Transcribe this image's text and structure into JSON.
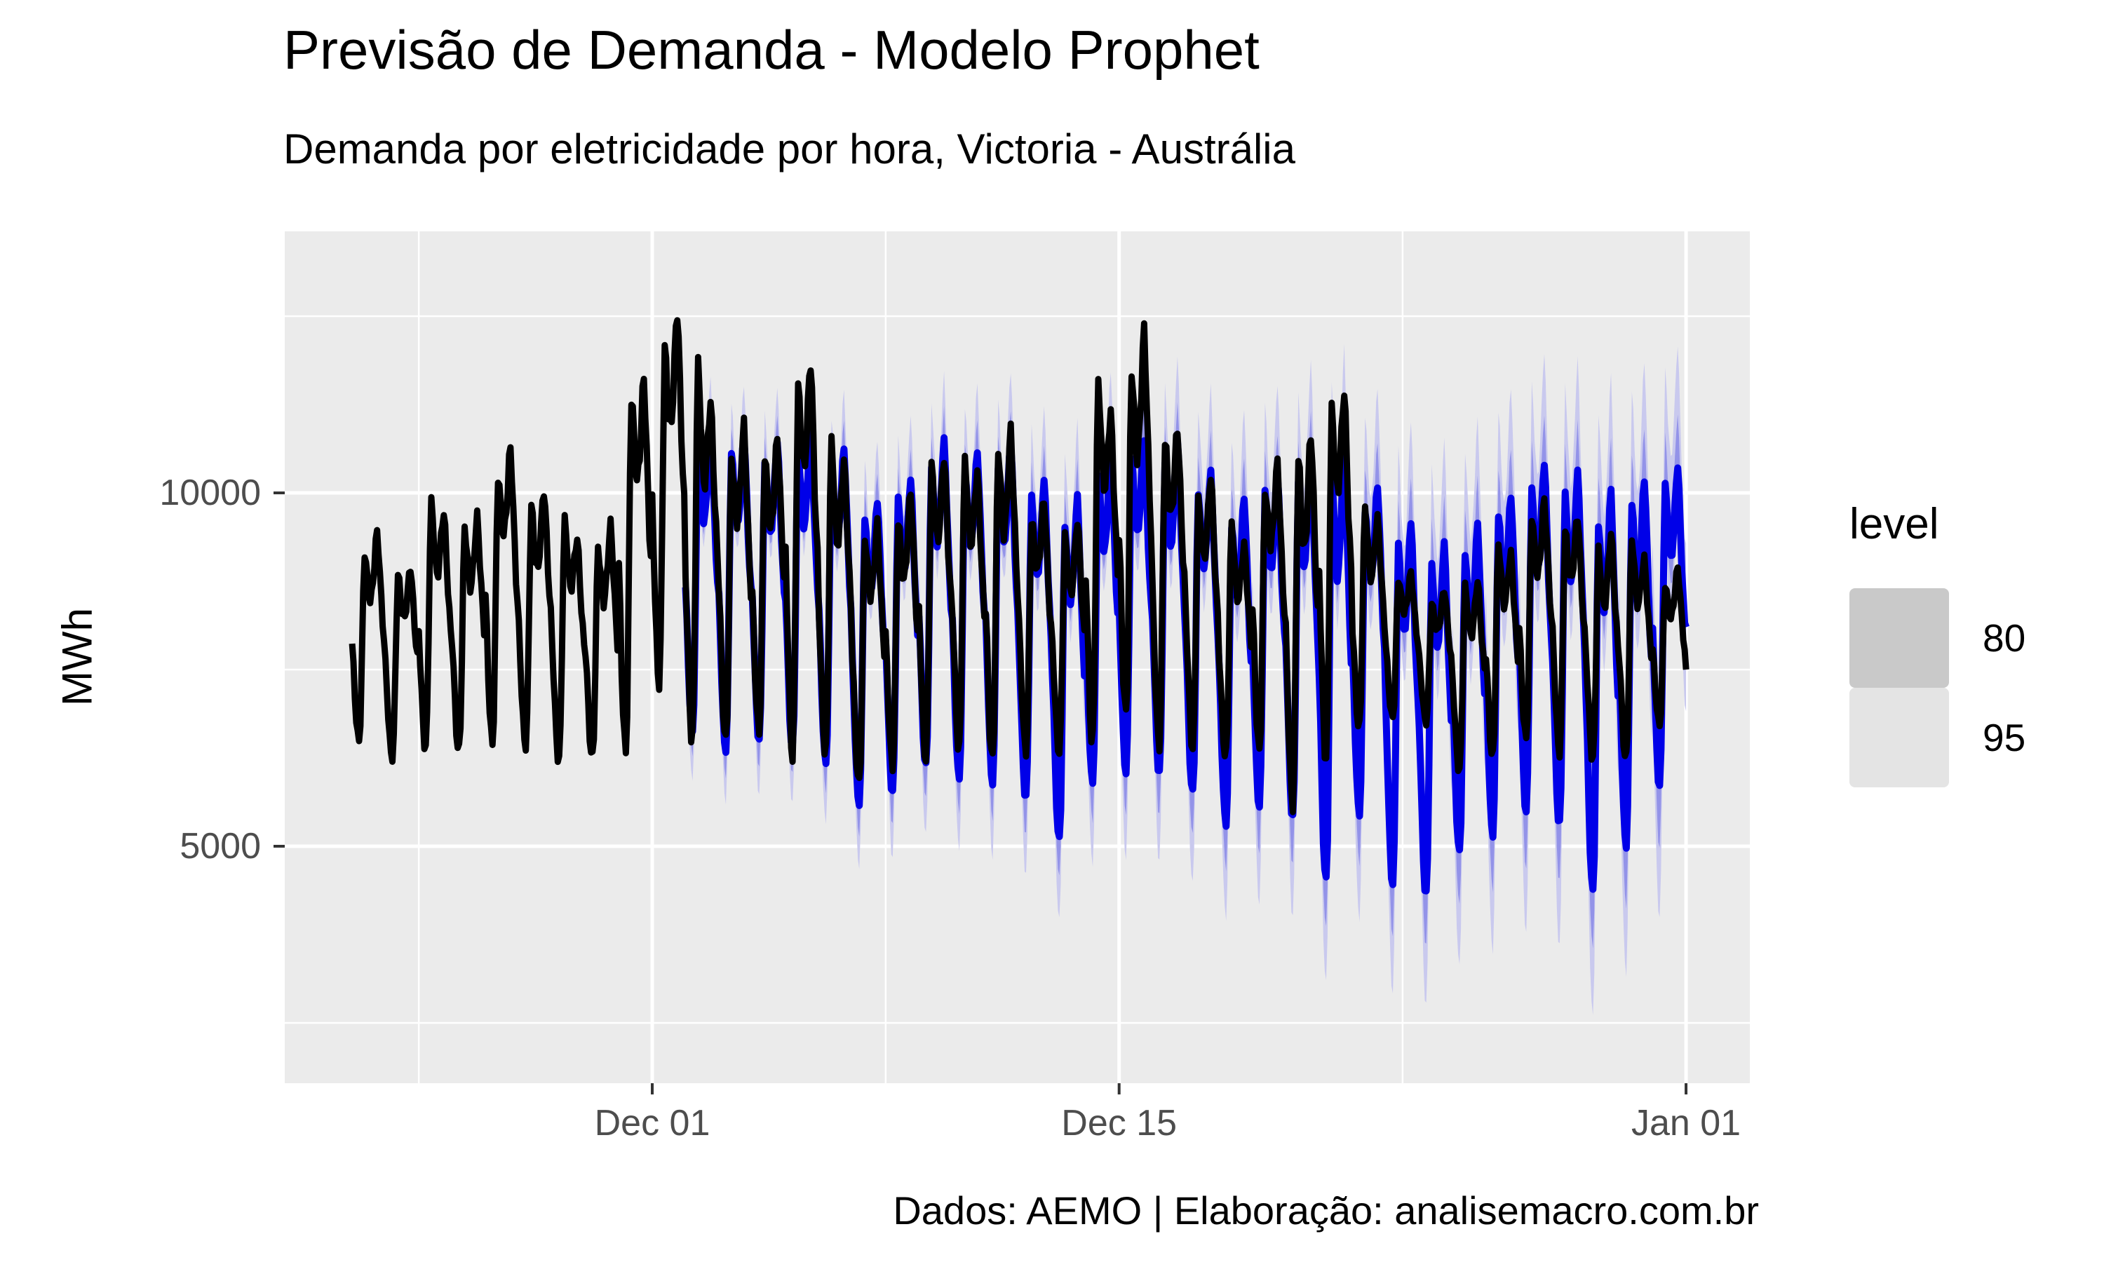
{
  "header": {
    "title": "Previsão de Demanda - Modelo Prophet",
    "subtitle": "Demanda por eletricidade por hora, Victoria - Austrália",
    "caption": "Dados: AEMO | Elaboração: analisemacro.com.br"
  },
  "y_axis": {
    "label": "MWh",
    "ticks": [
      10000,
      5000
    ],
    "minor_ticks": [
      12500,
      7500,
      2500
    ]
  },
  "x_axis": {
    "ticks": [
      {
        "label": "Dec 01",
        "day": 0
      },
      {
        "label": "Dec 15",
        "day": 14
      },
      {
        "label": "Jan 01",
        "day": 31
      }
    ],
    "minor_days": [
      -7,
      7,
      22.5
    ]
  },
  "legend": {
    "title": "level",
    "items": [
      {
        "label": "80",
        "color": "#c9c9c9"
      },
      {
        "label": "95",
        "color": "#e4e4e4"
      }
    ]
  },
  "colors": {
    "panel_bg": "#ebebeb",
    "grid": "#ffffff",
    "observed_line": "#000000",
    "forecast_line": "#0000e8",
    "ribbon_80": "#9393e8",
    "ribbon_95": "#c9c9ee",
    "axis_text": "#4d4d4d",
    "tick_mark": "#333333"
  },
  "chart_data": {
    "type": "line",
    "title": "Previsão de Demanda - Modelo Prophet",
    "x_unit": "hours",
    "x_range": [
      "Nov 22",
      "Jan 01"
    ],
    "ylim_visible": [
      1650,
      13400
    ],
    "grid": "major white + minor white on gray panel",
    "legend_position": "right",
    "series_notes": "observed = black hourly demand Nov 22–Jan 01; forecast = blue Prophet mean Dec 02–Jan 01 with 80% and 95% prediction ribbons; values are per-day [trough,peak] envelopes in MWh read from the plot",
    "observed_start_day_offset": -9,
    "forecast_start_day_offset": 1,
    "observed_days": [
      [
        6450,
        9400
      ],
      [
        6300,
        9000
      ],
      [
        6400,
        9900
      ],
      [
        6350,
        9700
      ],
      [
        6500,
        10600
      ],
      [
        6400,
        10050
      ],
      [
        6300,
        9600
      ],
      [
        6200,
        9500
      ],
      [
        6450,
        11700
      ],
      [
        7300,
        12500
      ],
      [
        6600,
        11700
      ],
      [
        6500,
        10900
      ],
      [
        6600,
        10800
      ],
      [
        6400,
        11900
      ],
      [
        6300,
        10700
      ],
      [
        5950,
        9600
      ],
      [
        6100,
        9950
      ],
      [
        6300,
        10600
      ],
      [
        6400,
        10500
      ],
      [
        6200,
        10900
      ],
      [
        6400,
        9900
      ],
      [
        6300,
        9600
      ],
      [
        6600,
        11500
      ],
      [
        6800,
        12200
      ],
      [
        6500,
        11000
      ],
      [
        6400,
        10200
      ],
      [
        6300,
        9500
      ],
      [
        6400,
        10400
      ],
      [
        5550,
        10850
      ],
      [
        6350,
        11500
      ],
      [
        6650,
        9800
      ],
      [
        6850,
        8900
      ],
      [
        6750,
        8600
      ],
      [
        6100,
        8800
      ],
      [
        6300,
        9300
      ],
      [
        6500,
        9900
      ],
      [
        6400,
        9700
      ],
      [
        6200,
        9400
      ],
      [
        6300,
        9300
      ],
      [
        6700,
        8900
      ]
    ],
    "observed_end_value": 7500,
    "forecast_days": [
      [
        6600,
        10900,
        350,
        350,
        700,
        700
      ],
      [
        6400,
        10850,
        368,
        364,
        740,
        735
      ],
      [
        6500,
        10700,
        386,
        378,
        780,
        770
      ],
      [
        6400,
        10900,
        404,
        392,
        820,
        805
      ],
      [
        6200,
        10600,
        422,
        406,
        860,
        840
      ],
      [
        5600,
        9900,
        440,
        420,
        900,
        875
      ],
      [
        5800,
        10200,
        458,
        434,
        940,
        910
      ],
      [
        6100,
        10700,
        476,
        448,
        980,
        945
      ],
      [
        6000,
        10600,
        494,
        462,
        1020,
        980
      ],
      [
        5900,
        10700,
        512,
        476,
        1060,
        1015
      ],
      [
        5700,
        10200,
        530,
        490,
        1100,
        1050
      ],
      [
        5100,
        9900,
        548,
        504,
        1140,
        1085
      ],
      [
        5900,
        10600,
        566,
        518,
        1180,
        1120
      ],
      [
        6100,
        10800,
        584,
        532,
        1220,
        1155
      ],
      [
        6000,
        10700,
        602,
        546,
        1260,
        1190
      ],
      [
        5800,
        10300,
        620,
        560,
        1300,
        1225
      ],
      [
        5300,
        9900,
        638,
        574,
        1340,
        1260
      ],
      [
        5600,
        10300,
        656,
        588,
        1380,
        1295
      ],
      [
        5400,
        10500,
        674,
        602,
        1420,
        1330
      ],
      [
        4500,
        10700,
        692,
        616,
        1460,
        1365
      ],
      [
        5500,
        10100,
        710,
        630,
        1500,
        1400
      ],
      [
        4450,
        9600,
        728,
        644,
        1540,
        1435
      ],
      [
        4350,
        9300,
        746,
        658,
        1580,
        1470
      ],
      [
        4900,
        9500,
        764,
        672,
        1620,
        1505
      ],
      [
        5200,
        10000,
        782,
        686,
        1660,
        1540
      ],
      [
        5500,
        10400,
        800,
        700,
        1700,
        1575
      ],
      [
        5300,
        10300,
        818,
        714,
        1740,
        1610
      ],
      [
        4400,
        10000,
        836,
        728,
        1780,
        1645
      ],
      [
        5000,
        10200,
        854,
        742,
        1820,
        1680
      ],
      [
        5900,
        10400,
        872,
        756,
        1860,
        1715
      ]
    ],
    "forecast_end_value": 8100,
    "daily_shape": [
      0.48,
      0.36,
      0.22,
      0.1,
      0.02,
      0.0,
      0.1,
      0.38,
      0.72,
      0.93,
      0.88,
      0.8,
      0.74,
      0.7,
      0.72,
      0.78,
      0.86,
      0.95,
      1.0,
      0.92,
      0.8,
      0.68,
      0.58,
      0.5
    ],
    "daily_shape_alt": [
      0.46,
      0.34,
      0.2,
      0.08,
      0.01,
      0.0,
      0.12,
      0.45,
      0.82,
      1.0,
      0.95,
      0.85,
      0.76,
      0.7,
      0.71,
      0.76,
      0.83,
      0.9,
      0.93,
      0.86,
      0.75,
      0.64,
      0.55,
      0.48
    ]
  }
}
